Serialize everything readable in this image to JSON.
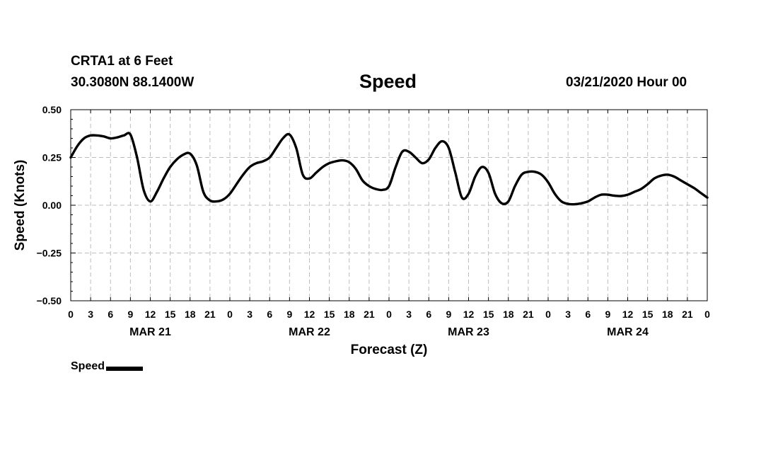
{
  "header": {
    "station": "CRTA1 at 6 Feet",
    "coords": "30.3080N 88.1400W",
    "run": "03/21/2020 Hour 00"
  },
  "chart_data": {
    "type": "line",
    "title": "Speed",
    "xlabel": "Forecast (Z)",
    "ylabel": "Speed (Knots)",
    "ylim": [
      -0.5,
      0.5
    ],
    "xlim_hours": [
      0,
      96
    ],
    "yticks": [
      "0.50",
      "0.25",
      "0.00",
      "−0.25",
      "−0.50"
    ],
    "ytick_values": [
      0.5,
      0.25,
      0,
      -0.25,
      -0.5
    ],
    "xtick_labels": [
      "0",
      "3",
      "6",
      "9",
      "12",
      "15",
      "18",
      "21",
      "0",
      "3",
      "6",
      "9",
      "12",
      "15",
      "18",
      "21",
      "0",
      "3",
      "6",
      "9",
      "12",
      "15",
      "18",
      "21",
      "0",
      "3",
      "6",
      "9",
      "12",
      "15",
      "18",
      "21",
      "0"
    ],
    "day_labels": [
      "MAR 21",
      "MAR 22",
      "MAR 23",
      "MAR 24"
    ],
    "grid": true,
    "legend_position": "bottom-left",
    "series": [
      {
        "name": "Speed",
        "color": "#000000",
        "x": [
          0,
          1,
          2,
          3,
          4,
          5,
          6,
          7,
          8,
          9,
          10,
          11,
          12,
          13,
          14,
          15,
          16,
          17,
          18,
          19,
          20,
          21,
          22,
          23,
          24,
          25,
          26,
          27,
          28,
          29,
          30,
          31,
          32,
          33,
          34,
          35,
          36,
          37,
          38,
          39,
          40,
          41,
          42,
          43,
          44,
          45,
          46,
          47,
          48,
          49,
          50,
          51,
          52,
          53,
          54,
          55,
          56,
          57,
          58,
          59,
          60,
          61,
          62,
          63,
          64,
          65,
          66,
          67,
          68,
          69,
          70,
          71,
          72,
          73,
          74,
          75,
          76,
          77,
          78,
          79,
          80,
          81,
          82,
          83,
          84,
          85,
          86,
          87,
          88,
          89,
          90,
          91,
          92,
          93,
          94,
          95,
          96
        ],
        "values": [
          0.25,
          0.31,
          0.35,
          0.365,
          0.365,
          0.36,
          0.35,
          0.355,
          0.365,
          0.37,
          0.25,
          0.08,
          0.02,
          0.07,
          0.14,
          0.2,
          0.24,
          0.265,
          0.27,
          0.21,
          0.07,
          0.025,
          0.02,
          0.03,
          0.06,
          0.11,
          0.16,
          0.2,
          0.22,
          0.23,
          0.25,
          0.3,
          0.35,
          0.37,
          0.3,
          0.16,
          0.14,
          0.17,
          0.2,
          0.22,
          0.23,
          0.235,
          0.225,
          0.19,
          0.13,
          0.1,
          0.085,
          0.08,
          0.1,
          0.2,
          0.28,
          0.28,
          0.25,
          0.22,
          0.24,
          0.3,
          0.335,
          0.3,
          0.17,
          0.04,
          0.06,
          0.15,
          0.2,
          0.17,
          0.06,
          0.01,
          0.02,
          0.1,
          0.16,
          0.175,
          0.175,
          0.16,
          0.12,
          0.06,
          0.02,
          0.007,
          0.005,
          0.01,
          0.02,
          0.04,
          0.055,
          0.055,
          0.05,
          0.048,
          0.055,
          0.07,
          0.085,
          0.11,
          0.14,
          0.155,
          0.16,
          0.15,
          0.13,
          0.11,
          0.09,
          0.065,
          0.04
        ]
      }
    ]
  },
  "legend": {
    "label": "Speed"
  }
}
